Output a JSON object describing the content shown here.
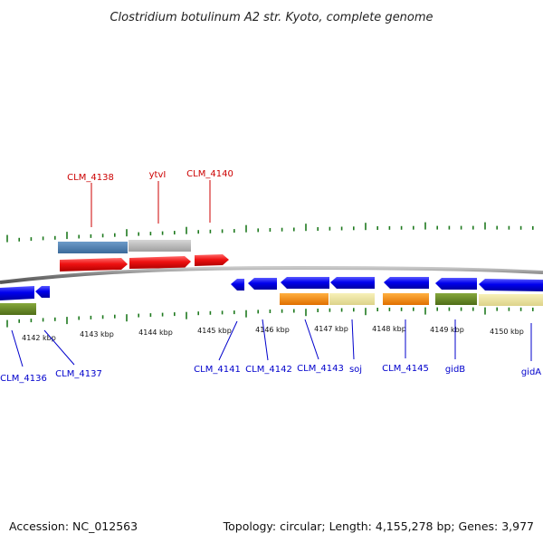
{
  "title": "Clostridium botulinum A2 str. Kyoto, complete genome",
  "footer": {
    "accession": "Accession: NC_012563",
    "summary": "Topology: circular; Length: 4,155,278 bp; Genes: 3,977"
  },
  "axis": {
    "unit": "kbp",
    "ticks": [
      "4142 kbp",
      "4143 kbp",
      "4144 kbp",
      "4145 kbp",
      "4146 kbp",
      "4147 kbp",
      "4148 kbp",
      "4149 kbp",
      "4150 kbp"
    ]
  },
  "genes_forward": [
    {
      "name": "CLM_4138"
    },
    {
      "name": "ytvI"
    },
    {
      "name": "CLM_4140"
    }
  ],
  "genes_reverse": [
    {
      "name": "CLM_4136"
    },
    {
      "name": "CLM_4137"
    },
    {
      "name": "CLM_4141"
    },
    {
      "name": "CLM_4142"
    },
    {
      "name": "CLM_4143"
    },
    {
      "name": "soj"
    },
    {
      "name": "CLM_4145"
    },
    {
      "name": "gidB"
    },
    {
      "name": "gidA"
    }
  ],
  "colors": {
    "forward_gene": "#ee1111",
    "reverse_gene": "#0000ee",
    "label_forward": "#cc0000",
    "label_reverse": "#0000cc",
    "tick": "#1f7a1f",
    "backbone": "#777777",
    "cog_blue": "#4f7fb0",
    "cog_gray": "#bbbbbb",
    "cog_orange": "#ff8c00",
    "cog_yellow": "#f0e8a0",
    "cog_olive": "#6b8e23"
  }
}
